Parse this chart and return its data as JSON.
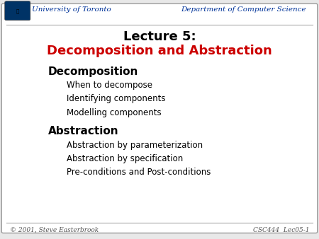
{
  "bg_color": "#e8e8e8",
  "slide_bg": "#ffffff",
  "header_left": "University of Toronto",
  "header_right": "Department of Computer Science",
  "header_color": "#003399",
  "header_line_color": "#aaaaaa",
  "title_line1": "Lecture 5:",
  "title_line2": "Decomposition and Abstraction",
  "title_line1_color": "#000000",
  "title_line2_color": "#cc0000",
  "section1_header": "Decomposition",
  "section1_items": [
    "When to decompose",
    "Identifying components",
    "Modelling components"
  ],
  "section2_header": "Abstraction",
  "section2_items": [
    "Abstraction by parameterization",
    "Abstraction by specification",
    "Pre-conditions and Post-conditions"
  ],
  "section_header_color": "#000000",
  "item_color": "#000000",
  "footer_left": "© 2001, Steve Easterbrook",
  "footer_right": "CSC444  Lec05-1",
  "footer_color": "#555555",
  "border_color": "#999999"
}
